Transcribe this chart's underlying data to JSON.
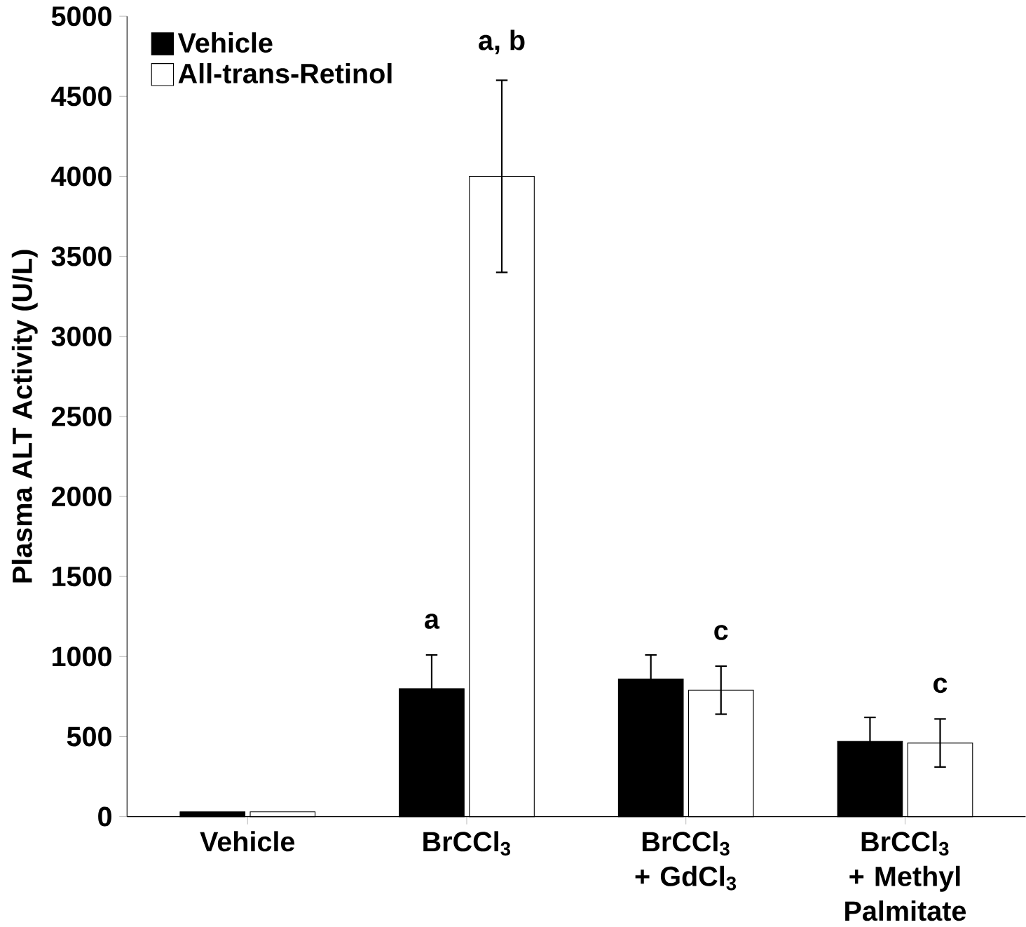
{
  "chart_data": {
    "type": "bar",
    "ylabel": "Plasma ALT Activity (U/L)",
    "categories": [
      "Vehicle",
      "BrCCl$_{3}$",
      "BrCCl$_{3}$ + GdCl$_{3}$",
      "BrCCl$_{3}$ + Methyl Palmitate"
    ],
    "series": [
      {
        "name": "Vehicle",
        "color": "#000000",
        "values": [
          30,
          800,
          860,
          470
        ],
        "errors": [
          null,
          210,
          150,
          150
        ]
      },
      {
        "name": "All-trans-Retinol",
        "color": "#ffffff",
        "values": [
          30,
          4000,
          790,
          460
        ],
        "errors": [
          null,
          600,
          150,
          150
        ]
      }
    ],
    "annotations": [
      "a",
      "a, b",
      "c",
      "c"
    ],
    "ylim": [
      0,
      5000
    ],
    "yticks": [
      0,
      500,
      1000,
      1500,
      2000,
      2500,
      3000,
      3500,
      4000,
      4500,
      5000
    ],
    "legend": "top left",
    "grid": false
  }
}
